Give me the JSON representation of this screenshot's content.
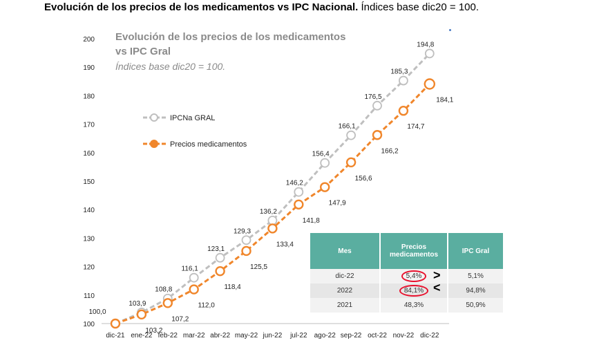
{
  "headline": {
    "bold": "Evolución de los precios de los medicamentos vs IPC Nacional.",
    "rest": " Índices base dic20 = 100."
  },
  "chart_data": {
    "type": "line",
    "title_line1": "Evolución de los precios de los medicamentos",
    "title_line2": "vs IPC Gral",
    "subtitle": "Índices base dic20 = 100.",
    "categories": [
      "dic-21",
      "ene-22",
      "feb-22",
      "mar-22",
      "abr-22",
      "may-22",
      "jun-22",
      "jul-22",
      "ago-22",
      "sep-22",
      "oct-22",
      "nov-22",
      "dic-22"
    ],
    "yticks": [
      "100",
      "110",
      "120",
      "130",
      "140",
      "150",
      "160",
      "170",
      "180",
      "190",
      "200"
    ],
    "ylim": [
      100,
      200
    ],
    "series": [
      {
        "name": "IPCNa GRAL",
        "color": "#bfbfbf",
        "values": [
          100,
          103.9,
          108.8,
          116.1,
          123.1,
          129.3,
          136.2,
          146.2,
          156.4,
          166.1,
          176.5,
          185.3,
          194.8
        ],
        "labels": [
          "100,0",
          "103,9",
          "108,8",
          "116,1",
          "123,1",
          "129,3",
          "136,2",
          "146,2",
          "156,4",
          "166,1",
          "176,5",
          "185,3",
          "194,8"
        ]
      },
      {
        "name": "Precios medicamentos",
        "color": "#f0862b",
        "values": [
          100,
          103.2,
          107.2,
          112.0,
          118.4,
          125.5,
          133.4,
          141.8,
          147.9,
          156.6,
          166.2,
          174.7,
          184.1
        ],
        "labels": [
          "",
          "103,2",
          "107,2",
          "112,0",
          "118,4",
          "125,5",
          "133,4",
          "141,8",
          "147,9",
          "156,6",
          "166,2",
          "174,7",
          "184,1"
        ]
      }
    ],
    "legend_position": "left"
  },
  "table": {
    "headers": [
      "Mes",
      "Precios medicamentos",
      "IPC Gral"
    ],
    "rows": [
      {
        "mes": "dic-22",
        "precios": "5,4%",
        "ipc": "5,1%"
      },
      {
        "mes": "2022",
        "precios": "84,1%",
        "ipc": "94,8%"
      },
      {
        "mes": "2021",
        "precios": "48,3%",
        "ipc": "50,9%"
      }
    ],
    "comparators": [
      ">",
      "<"
    ]
  }
}
